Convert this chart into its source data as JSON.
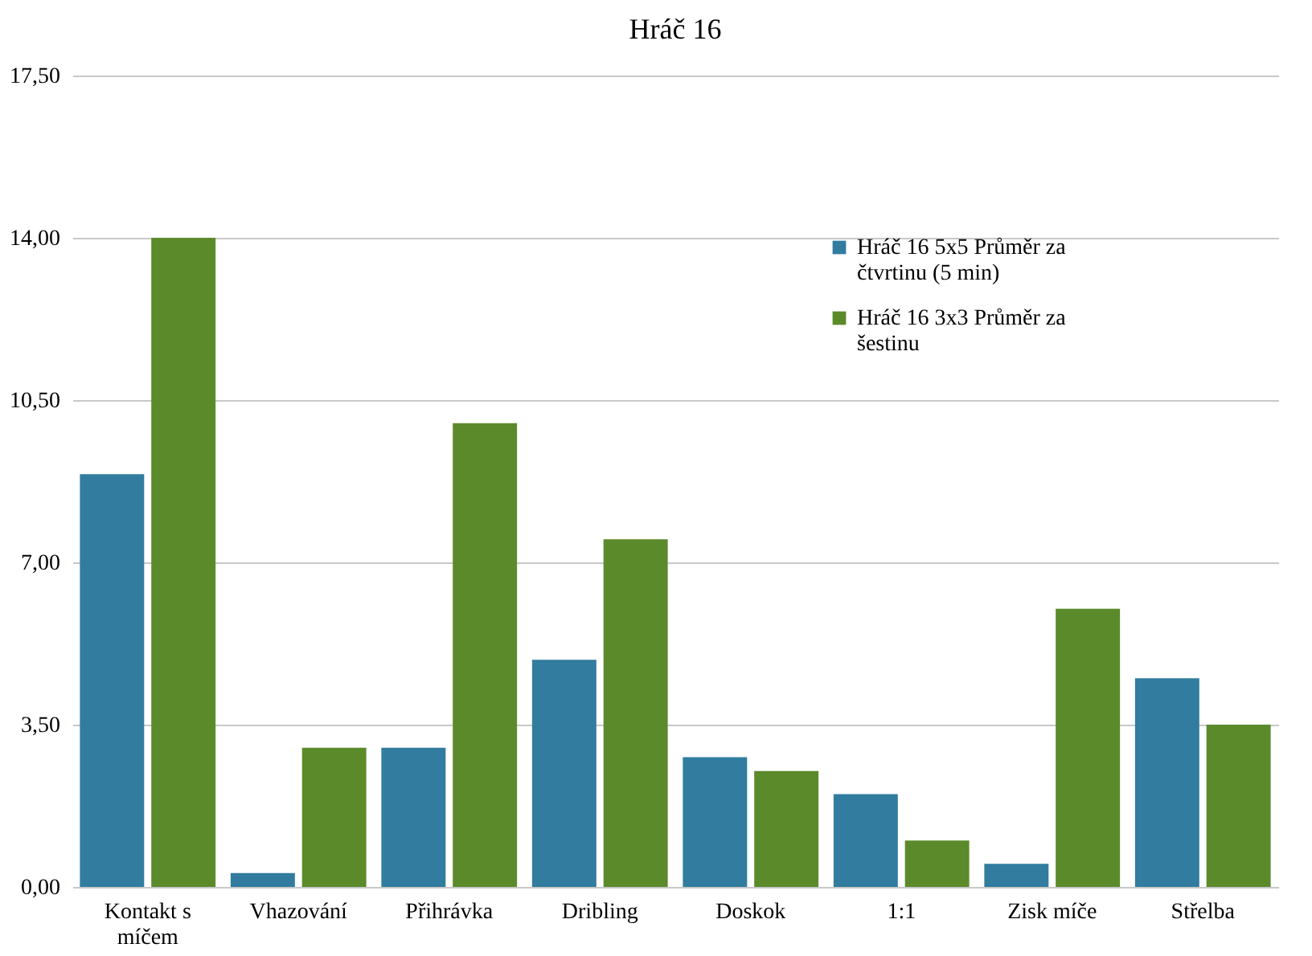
{
  "chart_data": {
    "type": "bar",
    "title": "Hráč 16",
    "categories": [
      "Kontakt s míčem",
      "Vhazování",
      "Přihrávka",
      "Dribling",
      "Doskok",
      "1:1",
      "Zisk míče",
      "Střelba"
    ],
    "series": [
      {
        "name": "Hráč 16 5x5 Průměr za čtvrtinu (5 min)",
        "color": "#317c9f",
        "values": [
          8.9,
          0.3,
          3.0,
          4.9,
          2.8,
          2.0,
          0.5,
          4.5
        ]
      },
      {
        "name": "Hráč 16 3x3 Průměr za šestinu",
        "color": "#5b8a2b",
        "values": [
          14.0,
          3.0,
          10.0,
          7.5,
          2.5,
          1.0,
          6.0,
          3.5
        ]
      }
    ],
    "ylim": [
      0,
      17.5
    ],
    "yticks": [
      {
        "value": 0,
        "label": "0,00"
      },
      {
        "value": 3.5,
        "label": "3,50"
      },
      {
        "value": 7,
        "label": "7,00"
      },
      {
        "value": 10.5,
        "label": "10,50"
      },
      {
        "value": 14,
        "label": "14,00"
      },
      {
        "value": 17.5,
        "label": "17,50"
      }
    ],
    "grid": "y",
    "legend": "top right"
  }
}
